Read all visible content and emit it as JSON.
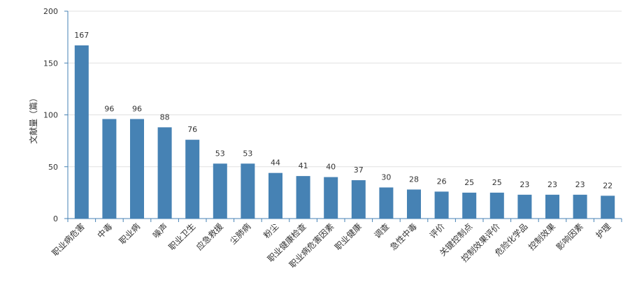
{
  "chart_data": {
    "type": "bar",
    "ylabel": "文献量（篇）",
    "ylim": [
      0,
      200
    ],
    "yticks": [
      0,
      50,
      100,
      150,
      200
    ],
    "grid": true,
    "bar_color": "#4682b4",
    "categories": [
      "职业病危害",
      "中毒",
      "职业病",
      "噪声",
      "职业卫生",
      "应急救援",
      "尘肺病",
      "粉尘",
      "职业健康检查",
      "职业病危害因素",
      "职业健康",
      "调查",
      "急性中毒",
      "评价",
      "关键控制点",
      "控制效果评价",
      "危险化学品",
      "控制效果",
      "影响因素",
      "护理"
    ],
    "values": [
      167,
      96,
      96,
      88,
      76,
      53,
      53,
      44,
      41,
      40,
      37,
      30,
      28,
      26,
      25,
      25,
      23,
      23,
      23,
      22
    ]
  }
}
